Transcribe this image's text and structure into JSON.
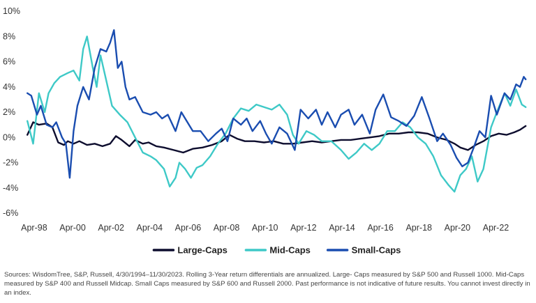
{
  "chart_data": {
    "type": "line",
    "title": "",
    "xlabel": "",
    "ylabel": "",
    "ylim": [
      -6,
      10
    ],
    "yticks": [
      -6,
      -4,
      -2,
      0,
      2,
      4,
      6,
      8,
      10
    ],
    "ytick_labels": [
      "-6%",
      "-4%",
      "-2%",
      "0%",
      "2%",
      "4%",
      "6%",
      "8%",
      "10%"
    ],
    "xlim": [
      1998.0,
      2023.9
    ],
    "xticks": [
      1998.25,
      2000.25,
      2002.25,
      2004.25,
      2006.25,
      2008.25,
      2010.25,
      2012.25,
      2014.25,
      2016.25,
      2018.25,
      2020.25,
      2022.25
    ],
    "xtick_labels": [
      "Apr-98",
      "Apr-00",
      "Apr-02",
      "Apr-04",
      "Apr-06",
      "Apr-08",
      "Apr-10",
      "Apr-12",
      "Apr-14",
      "Apr-16",
      "Apr-18",
      "Apr-20",
      "Apr-22"
    ],
    "grid": false,
    "legend_position": "bottom",
    "series": [
      {
        "name": "Large-Caps",
        "color": "#0d0d2e",
        "x": [
          1997.9,
          1998.2,
          1998.5,
          1998.9,
          1999.2,
          1999.5,
          1999.8,
          2000.0,
          2000.3,
          2000.6,
          2001.0,
          2001.4,
          2001.8,
          2002.2,
          2002.5,
          2002.8,
          2003.2,
          2003.5,
          2003.9,
          2004.2,
          2004.6,
          2005.0,
          2005.5,
          2006.0,
          2006.5,
          2007.0,
          2007.5,
          2008.0,
          2008.4,
          2008.8,
          2009.2,
          2009.7,
          2010.2,
          2010.7,
          2011.2,
          2011.7,
          2012.2,
          2012.7,
          2013.2,
          2013.7,
          2014.2,
          2014.7,
          2015.2,
          2015.7,
          2016.2,
          2016.7,
          2017.2,
          2017.7,
          2018.2,
          2018.7,
          2019.2,
          2019.7,
          2020.1,
          2020.4,
          2020.8,
          2021.2,
          2021.6,
          2022.0,
          2022.4,
          2022.8,
          2023.2,
          2023.5,
          2023.8
        ],
        "y": [
          0.2,
          1.2,
          1.0,
          1.1,
          0.8,
          -0.4,
          -0.6,
          -0.3,
          -0.5,
          -0.3,
          -0.6,
          -0.5,
          -0.7,
          -0.5,
          0.1,
          -0.2,
          -0.7,
          -0.2,
          -0.5,
          -0.4,
          -0.7,
          -0.8,
          -1.0,
          -1.2,
          -0.9,
          -0.8,
          -0.6,
          -0.3,
          0.2,
          -0.1,
          -0.3,
          -0.3,
          -0.4,
          -0.3,
          -0.5,
          -0.5,
          -0.4,
          -0.3,
          -0.4,
          -0.3,
          -0.2,
          -0.2,
          -0.1,
          0.0,
          0.1,
          0.3,
          0.3,
          0.4,
          0.4,
          0.3,
          0.0,
          -0.2,
          -0.5,
          -0.8,
          -1.0,
          -0.6,
          -0.3,
          0.1,
          0.3,
          0.2,
          0.4,
          0.6,
          0.9
        ]
      },
      {
        "name": "Mid-Caps",
        "color": "#3ec9c7",
        "x": [
          1997.9,
          1998.2,
          1998.5,
          1998.8,
          1999.0,
          1999.3,
          1999.6,
          2000.0,
          2000.3,
          2000.6,
          2000.8,
          2001.0,
          2001.3,
          2001.5,
          2001.7,
          2002.0,
          2002.3,
          2002.7,
          2003.1,
          2003.5,
          2003.9,
          2004.3,
          2004.6,
          2005.0,
          2005.3,
          2005.6,
          2005.8,
          2006.1,
          2006.4,
          2006.7,
          2007.0,
          2007.4,
          2007.8,
          2008.2,
          2008.6,
          2009.0,
          2009.4,
          2009.8,
          2010.2,
          2010.6,
          2011.0,
          2011.4,
          2011.7,
          2012.0,
          2012.4,
          2012.8,
          2013.2,
          2013.7,
          2014.2,
          2014.6,
          2015.0,
          2015.4,
          2015.8,
          2016.2,
          2016.6,
          2017.0,
          2017.4,
          2017.8,
          2018.2,
          2018.6,
          2019.0,
          2019.4,
          2019.8,
          2020.1,
          2020.4,
          2020.7,
          2021.0,
          2021.3,
          2021.6,
          2022.0,
          2022.3,
          2022.7,
          2023.0,
          2023.3,
          2023.6,
          2023.8
        ],
        "y": [
          1.3,
          -0.5,
          3.5,
          2.0,
          3.5,
          4.3,
          4.8,
          5.1,
          5.3,
          4.5,
          7.0,
          8.0,
          5.5,
          4.0,
          6.5,
          4.5,
          2.5,
          1.8,
          1.2,
          0.0,
          -1.2,
          -1.5,
          -1.8,
          -2.5,
          -3.9,
          -3.2,
          -2.0,
          -2.5,
          -3.2,
          -2.4,
          -2.2,
          -1.5,
          -0.5,
          0.3,
          1.5,
          2.3,
          2.1,
          2.6,
          2.4,
          2.2,
          2.6,
          1.8,
          0.2,
          -0.5,
          0.5,
          0.2,
          -0.3,
          -0.3,
          -1.0,
          -1.7,
          -1.2,
          -0.5,
          -1.0,
          -0.5,
          0.5,
          0.5,
          1.2,
          0.8,
          0.0,
          -0.5,
          -1.5,
          -3.0,
          -3.8,
          -4.3,
          -3.0,
          -2.5,
          -1.5,
          -3.5,
          -2.5,
          0.8,
          2.0,
          3.5,
          2.5,
          3.8,
          2.6,
          2.4
        ]
      },
      {
        "name": "Small-Caps",
        "color": "#1a4db0",
        "x": [
          1997.9,
          1998.1,
          1998.4,
          1998.6,
          1998.9,
          1999.2,
          1999.4,
          1999.7,
          1999.9,
          2000.1,
          2000.3,
          2000.5,
          2000.8,
          2001.1,
          2001.4,
          2001.7,
          2002.0,
          2002.2,
          2002.4,
          2002.6,
          2002.8,
          2003.0,
          2003.2,
          2003.5,
          2003.9,
          2004.3,
          2004.6,
          2004.9,
          2005.2,
          2005.6,
          2005.9,
          2006.1,
          2006.5,
          2006.9,
          2007.3,
          2007.7,
          2008.0,
          2008.3,
          2008.6,
          2009.0,
          2009.3,
          2009.6,
          2010.0,
          2010.3,
          2010.6,
          2011.0,
          2011.4,
          2011.8,
          2012.1,
          2012.5,
          2012.9,
          2013.2,
          2013.5,
          2013.9,
          2014.2,
          2014.6,
          2014.9,
          2015.3,
          2015.7,
          2016.0,
          2016.4,
          2016.8,
          2017.2,
          2017.6,
          2018.0,
          2018.4,
          2018.8,
          2019.2,
          2019.5,
          2019.9,
          2020.2,
          2020.5,
          2020.8,
          2021.1,
          2021.4,
          2021.7,
          2022.0,
          2022.3,
          2022.7,
          2023.0,
          2023.3,
          2023.5,
          2023.7,
          2023.8
        ],
        "y": [
          3.5,
          3.3,
          1.8,
          2.5,
          1.0,
          0.8,
          1.2,
          0.0,
          -0.5,
          -3.2,
          0.5,
          2.5,
          4.0,
          3.0,
          5.5,
          7.0,
          6.8,
          7.5,
          8.5,
          5.5,
          6.0,
          4.0,
          3.0,
          3.2,
          2.0,
          1.8,
          2.0,
          1.5,
          1.8,
          0.5,
          2.0,
          1.5,
          0.5,
          0.5,
          -0.3,
          0.3,
          0.7,
          -0.3,
          1.5,
          1.0,
          1.5,
          0.5,
          1.3,
          0.3,
          -0.5,
          0.8,
          0.3,
          -1.0,
          2.2,
          1.5,
          2.2,
          1.0,
          2.0,
          0.8,
          1.8,
          2.2,
          1.0,
          1.8,
          0.3,
          2.2,
          3.4,
          1.6,
          1.3,
          0.9,
          1.7,
          3.2,
          1.5,
          -0.3,
          0.3,
          -0.6,
          -1.6,
          -2.3,
          -2.0,
          -0.8,
          0.5,
          0.0,
          3.3,
          1.8,
          3.5,
          3.0,
          4.2,
          4.0,
          4.8,
          4.6
        ]
      }
    ]
  },
  "footnote": {
    "line1": "Sources: WisdomTree, S&P, Russell, 4/30/1994–11/30/2023. Rolling 3-Year return differentials are annualized. Large- Caps measured by S&P 500 and Russell 1000. Mid-Caps",
    "line2": "measured by S&P 400 and Russell Midcap. Small Caps measured by S&P 600 and Russell 2000. Past performance is not indicative of future results. You cannot invest directly in",
    "line3": "an index."
  }
}
